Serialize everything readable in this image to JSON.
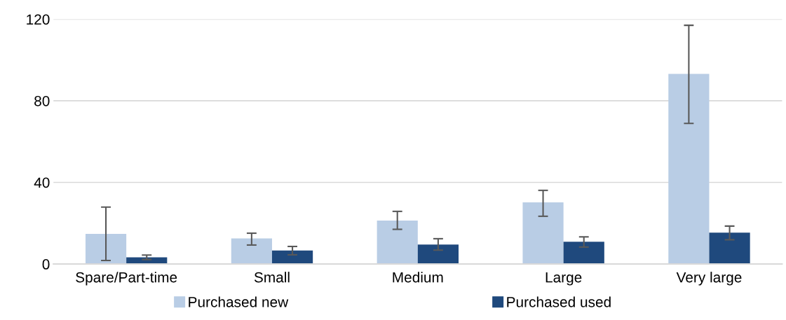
{
  "chart_data": {
    "type": "bar",
    "categories": [
      "Spare/Part-time",
      "Small",
      "Medium",
      "Large",
      "Very large"
    ],
    "series": [
      {
        "name": "Purchased new",
        "color": "#b9cde5",
        "values": [
          14.8,
          12.5,
          21.3,
          30.2,
          93.2
        ],
        "errors": [
          [
            1.7,
            27.9
          ],
          [
            9.3,
            15.1
          ],
          [
            17.0,
            25.8
          ],
          [
            23.4,
            36.1
          ],
          [
            68.9,
            117.0
          ]
        ]
      },
      {
        "name": "Purchased used",
        "color": "#1f497d",
        "values": [
          3.3,
          6.6,
          9.5,
          10.9,
          15.4
        ],
        "errors": [
          [
            2.2,
            4.4
          ],
          [
            4.5,
            8.6
          ],
          [
            6.8,
            12.4
          ],
          [
            8.3,
            13.3
          ],
          [
            11.9,
            18.6
          ]
        ]
      }
    ],
    "ylim": [
      0,
      120
    ],
    "yticks": [
      0,
      40,
      80,
      120
    ],
    "grid": "y",
    "legend": "bottom"
  }
}
